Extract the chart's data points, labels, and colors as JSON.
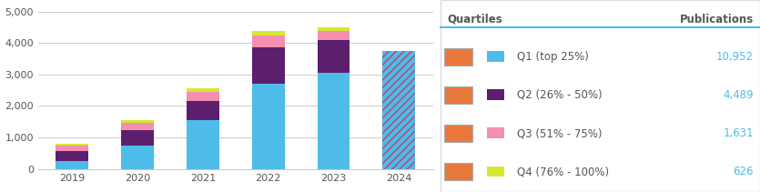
{
  "years": [
    "2019",
    "2020",
    "2021",
    "2022",
    "2023",
    "2024"
  ],
  "q1_values": [
    250,
    750,
    1550,
    2700,
    3050,
    3750
  ],
  "q2_values": [
    320,
    480,
    620,
    1150,
    1050,
    0
  ],
  "q3_values": [
    160,
    230,
    280,
    380,
    280,
    0
  ],
  "q4_values": [
    70,
    90,
    120,
    150,
    130,
    0
  ],
  "q1_color": "#4dbce9",
  "q2_color": "#5b1f6e",
  "q3_color": "#f48fb1",
  "q4_color": "#d4e832",
  "q2024_hatch_color1": "#4dbce9",
  "q2024_hatch_color2": "#c0416a",
  "background_color": "#ffffff",
  "grid_color": "#cccccc",
  "ylim": [
    0,
    5000
  ],
  "yticks": [
    0,
    1000,
    2000,
    3000,
    4000,
    5000
  ],
  "legend_title_quartiles": "Quartiles",
  "legend_title_publications": "Publications",
  "legend_items": [
    {
      "label": "Q1 (top 25%)",
      "bar_color": "#e8783c",
      "dot_color": "#4dbce9",
      "value": "10,952"
    },
    {
      "label": "Q2 (26% - 50%)",
      "bar_color": "#e8783c",
      "dot_color": "#5b1f6e",
      "value": "4,489"
    },
    {
      "label": "Q3 (51% - 75%)",
      "bar_color": "#e8783c",
      "dot_color": "#f48fb1",
      "value": "1,631"
    },
    {
      "label": "Q4 (76% - 100%)",
      "bar_color": "#e8783c",
      "dot_color": "#d4e832",
      "value": "626"
    }
  ],
  "legend_value_color": "#4dbce9",
  "legend_text_color": "#555555",
  "divider_line_color": "#4dbce9",
  "axis_text_color": "#555555",
  "bar_width": 0.5
}
